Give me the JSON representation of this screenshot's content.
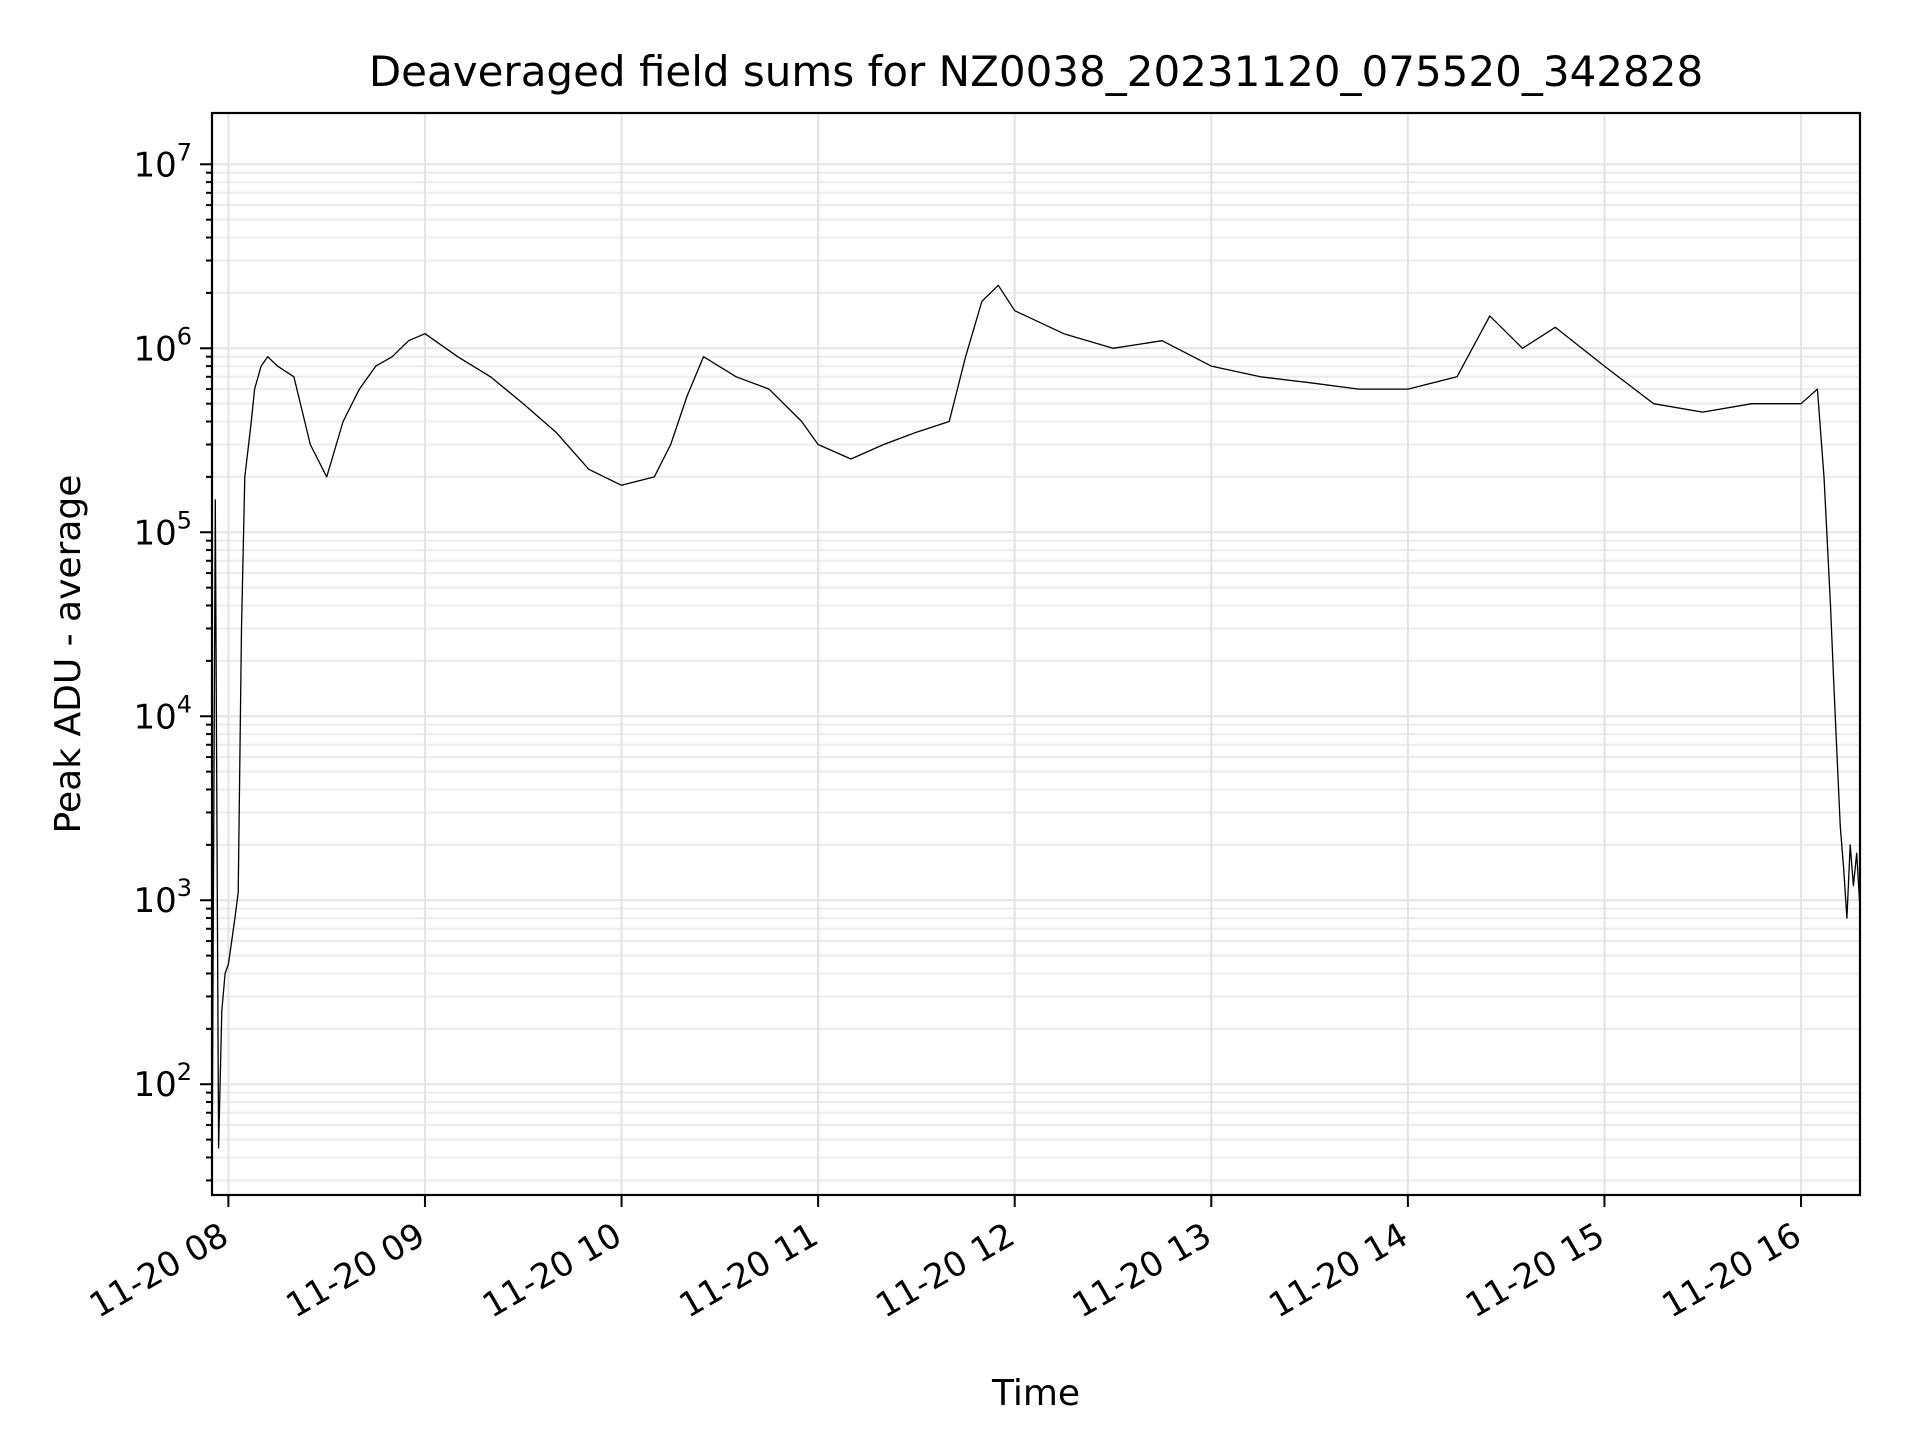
{
  "chart_data": {
    "type": "line",
    "title": "Deaveraged field sums for NZ0038_20231120_075520_342828",
    "xlabel": "Time",
    "ylabel": "Peak ADU - average",
    "yscale": "log",
    "grid": true,
    "xlim": [
      "11-20 07:55",
      "11-20 16:18"
    ],
    "ylim": [
      25,
      19000000
    ],
    "x_ticks": [
      "11-20 08",
      "11-20 09",
      "11-20 10",
      "11-20 11",
      "11-20 12",
      "11-20 13",
      "11-20 14",
      "11-20 15",
      "11-20 16"
    ],
    "y_ticks": [
      100,
      1000,
      10000,
      100000,
      1000000,
      10000000
    ],
    "y_tick_labels": [
      {
        "base": "10",
        "exp": "2"
      },
      {
        "base": "10",
        "exp": "3"
      },
      {
        "base": "10",
        "exp": "4"
      },
      {
        "base": "10",
        "exp": "5"
      },
      {
        "base": "10",
        "exp": "6"
      },
      {
        "base": "10",
        "exp": "7"
      }
    ],
    "series": [
      {
        "color": "#000000",
        "note": "approximate trace read from the plot; x as 'MM-DD HH:MM', y in ADU",
        "points": [
          [
            "11-20 07:55",
            25
          ],
          [
            "11-20 07:56",
            150000
          ],
          [
            "11-20 07:57",
            45
          ],
          [
            "11-20 07:58",
            250
          ],
          [
            "11-20 07:59",
            400
          ],
          [
            "11-20 08:00",
            450
          ],
          [
            "11-20 08:01",
            600
          ],
          [
            "11-20 08:02",
            800
          ],
          [
            "11-20 08:03",
            1100
          ],
          [
            "11-20 08:04",
            30000
          ],
          [
            "11-20 08:05",
            200000
          ],
          [
            "11-20 08:07",
            400000
          ],
          [
            "11-20 08:08",
            600000
          ],
          [
            "11-20 08:10",
            800000
          ],
          [
            "11-20 08:12",
            900000
          ],
          [
            "11-20 08:15",
            800000
          ],
          [
            "11-20 08:20",
            700000
          ],
          [
            "11-20 08:25",
            300000
          ],
          [
            "11-20 08:30",
            200000
          ],
          [
            "11-20 08:35",
            400000
          ],
          [
            "11-20 08:40",
            600000
          ],
          [
            "11-20 08:45",
            800000
          ],
          [
            "11-20 08:50",
            900000
          ],
          [
            "11-20 08:55",
            1100000
          ],
          [
            "11-20 09:00",
            1200000
          ],
          [
            "11-20 09:10",
            900000
          ],
          [
            "11-20 09:20",
            700000
          ],
          [
            "11-20 09:30",
            500000
          ],
          [
            "11-20 09:40",
            350000
          ],
          [
            "11-20 09:50",
            220000
          ],
          [
            "11-20 10:00",
            180000
          ],
          [
            "11-20 10:10",
            200000
          ],
          [
            "11-20 10:15",
            300000
          ],
          [
            "11-20 10:20",
            550000
          ],
          [
            "11-20 10:25",
            900000
          ],
          [
            "11-20 10:35",
            700000
          ],
          [
            "11-20 10:45",
            600000
          ],
          [
            "11-20 10:55",
            400000
          ],
          [
            "11-20 11:00",
            300000
          ],
          [
            "11-20 11:10",
            250000
          ],
          [
            "11-20 11:20",
            300000
          ],
          [
            "11-20 11:30",
            350000
          ],
          [
            "11-20 11:40",
            400000
          ],
          [
            "11-20 11:45",
            900000
          ],
          [
            "11-20 11:50",
            1800000
          ],
          [
            "11-20 11:55",
            2200000
          ],
          [
            "11-20 12:00",
            1600000
          ],
          [
            "11-20 12:15",
            1200000
          ],
          [
            "11-20 12:30",
            1000000
          ],
          [
            "11-20 12:45",
            1100000
          ],
          [
            "11-20 13:00",
            800000
          ],
          [
            "11-20 13:15",
            700000
          ],
          [
            "11-20 13:30",
            650000
          ],
          [
            "11-20 13:45",
            600000
          ],
          [
            "11-20 14:00",
            600000
          ],
          [
            "11-20 14:15",
            700000
          ],
          [
            "11-20 14:25",
            1500000
          ],
          [
            "11-20 14:35",
            1000000
          ],
          [
            "11-20 14:45",
            1300000
          ],
          [
            "11-20 15:00",
            800000
          ],
          [
            "11-20 15:15",
            500000
          ],
          [
            "11-20 15:30",
            450000
          ],
          [
            "11-20 15:45",
            500000
          ],
          [
            "11-20 16:00",
            500000
          ],
          [
            "11-20 16:05",
            600000
          ],
          [
            "11-20 16:07",
            200000
          ],
          [
            "11-20 16:09",
            40000
          ],
          [
            "11-20 16:10",
            15000
          ],
          [
            "11-20 16:11",
            6000
          ],
          [
            "11-20 16:12",
            2500
          ],
          [
            "11-20 16:13",
            1500
          ],
          [
            "11-20 16:14",
            800
          ],
          [
            "11-20 16:15",
            2000
          ],
          [
            "11-20 16:16",
            1200
          ],
          [
            "11-20 16:17",
            1800
          ],
          [
            "11-20 16:18",
            900
          ]
        ]
      }
    ]
  }
}
